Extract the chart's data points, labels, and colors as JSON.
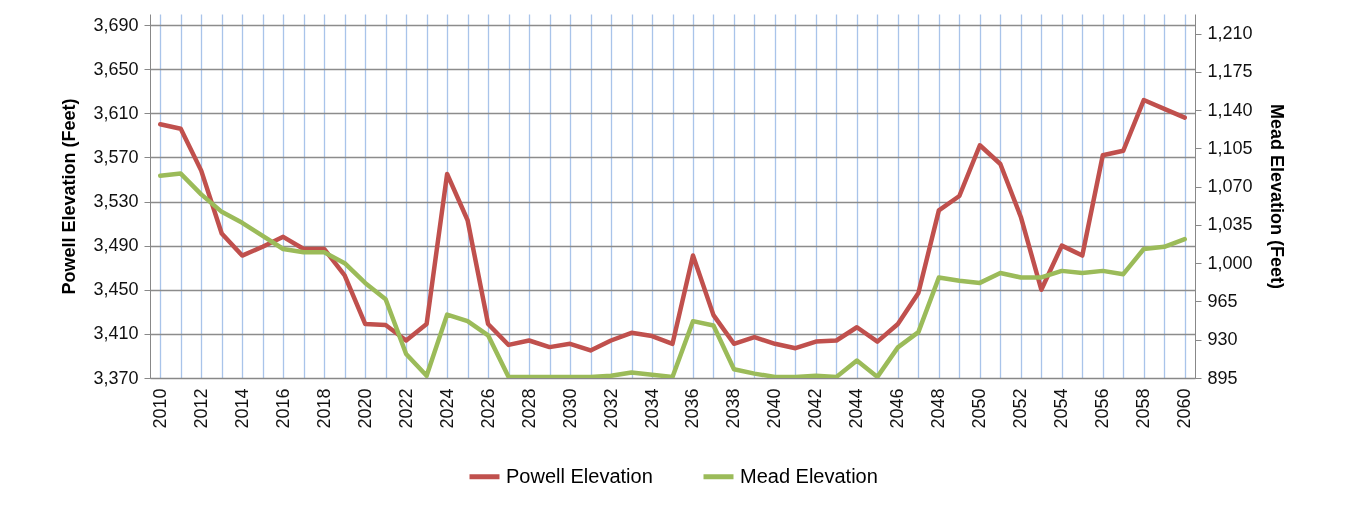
{
  "chart_data": {
    "type": "line",
    "ylabel": "Powell Elevation (Feet)",
    "y2label": "Mead Elevation (Feet)",
    "x": [
      2010,
      2011,
      2012,
      2013,
      2014,
      2015,
      2016,
      2017,
      2018,
      2019,
      2020,
      2021,
      2022,
      2023,
      2024,
      2025,
      2026,
      2027,
      2028,
      2029,
      2030,
      2031,
      2032,
      2033,
      2034,
      2035,
      2036,
      2037,
      2038,
      2039,
      2040,
      2041,
      2042,
      2043,
      2044,
      2045,
      2046,
      2047,
      2048,
      2049,
      2050,
      2051,
      2052,
      2053,
      2054,
      2055,
      2056,
      2057,
      2058,
      2059,
      2060
    ],
    "series": [
      {
        "name": "Powell Elevation",
        "color": "#c0504d",
        "values": [
          3600,
          3596,
          3558,
          3501,
          3481,
          3489,
          3498,
          3487,
          3487,
          3463,
          3419,
          3418,
          3404,
          3419,
          3555,
          3513,
          3419,
          3400,
          3404,
          3398,
          3401,
          3395,
          3404,
          3411,
          3408,
          3401,
          3481,
          3427,
          3401,
          3407,
          3401,
          3397,
          3403,
          3404,
          3416,
          3403,
          3419,
          3447,
          3522,
          3535,
          3581,
          3564,
          3516,
          3450,
          3490,
          3481,
          3572,
          3576,
          3622,
          3614,
          3606
        ]
      },
      {
        "name": "Mead Elevation",
        "color": "#9bbb59",
        "axis": "y2",
        "values": [
          1080,
          1082,
          1063,
          1047,
          1037,
          1025,
          1013,
          1010,
          1010,
          1000,
          982,
          967,
          917,
          897,
          953,
          947,
          934,
          896,
          896,
          896,
          896,
          896,
          897,
          900,
          898,
          896,
          947,
          943,
          903,
          899,
          896,
          896,
          897,
          896,
          911,
          896,
          923,
          937,
          987,
          984,
          982,
          991,
          987,
          987,
          993,
          991,
          993,
          990,
          1013,
          1015,
          1022
        ]
      }
    ],
    "xlim": [
      2009.5,
      2060.5
    ],
    "xticks": [
      2010,
      {
        "value": 2011,
        "label": null
      },
      2012,
      {
        "value": 2013,
        "label": null
      },
      2014,
      {
        "value": 2015,
        "label": null
      },
      2016,
      {
        "value": 2017,
        "label": null
      },
      2018,
      {
        "value": 2019,
        "label": null
      },
      2020,
      {
        "value": 2021,
        "label": null
      },
      2022,
      {
        "value": 2023,
        "label": null
      },
      2024,
      {
        "value": 2025,
        "label": null
      },
      2026,
      {
        "value": 2027,
        "label": null
      },
      2028,
      {
        "value": 2029,
        "label": null
      },
      2030,
      {
        "value": 2031,
        "label": null
      },
      2032,
      {
        "value": 2033,
        "label": null
      },
      2034,
      {
        "value": 2035,
        "label": null
      },
      2036,
      {
        "value": 2037,
        "label": null
      },
      2038,
      {
        "value": 2039,
        "label": null
      },
      2040,
      {
        "value": 2041,
        "label": null
      },
      2042,
      {
        "value": 2043,
        "label": null
      },
      2044,
      {
        "value": 2045,
        "label": null
      },
      2046,
      {
        "value": 2047,
        "label": null
      },
      2048,
      {
        "value": 2049,
        "label": null
      },
      2050,
      {
        "value": 2051,
        "label": null
      },
      2052,
      {
        "value": 2053,
        "label": null
      },
      2054,
      {
        "value": 2055,
        "label": null
      },
      2056,
      {
        "value": 2057,
        "label": null
      },
      2058,
      {
        "value": 2059,
        "label": null
      },
      2060
    ],
    "ylim": [
      3370,
      3700
    ],
    "yticks": [
      {
        "value": 3370,
        "label": "3,370"
      },
      {
        "value": 3410,
        "label": "3,410"
      },
      {
        "value": 3450,
        "label": "3,450"
      },
      {
        "value": 3490,
        "label": "3,490"
      },
      {
        "value": 3530,
        "label": "3,530"
      },
      {
        "value": 3570,
        "label": "3,570"
      },
      {
        "value": 3610,
        "label": "3,610"
      },
      {
        "value": 3650,
        "label": "3,650"
      },
      {
        "value": 3690,
        "label": "3,690"
      }
    ],
    "y2lim": [
      895,
      1228
    ],
    "y2ticks": [
      {
        "value": 895,
        "label": "895"
      },
      {
        "value": 930,
        "label": "930"
      },
      {
        "value": 965,
        "label": "965"
      },
      {
        "value": 1000,
        "label": "1,000"
      },
      {
        "value": 1035,
        "label": "1,035"
      },
      {
        "value": 1070,
        "label": "1,070"
      },
      {
        "value": 1105,
        "label": "1,105"
      },
      {
        "value": 1140,
        "label": "1,140"
      },
      {
        "value": 1175,
        "label": "1,175"
      },
      {
        "value": 1210,
        "label": "1,210"
      }
    ],
    "grid": true,
    "legend": "bottom",
    "marker": "none",
    "line_style": "solid"
  }
}
